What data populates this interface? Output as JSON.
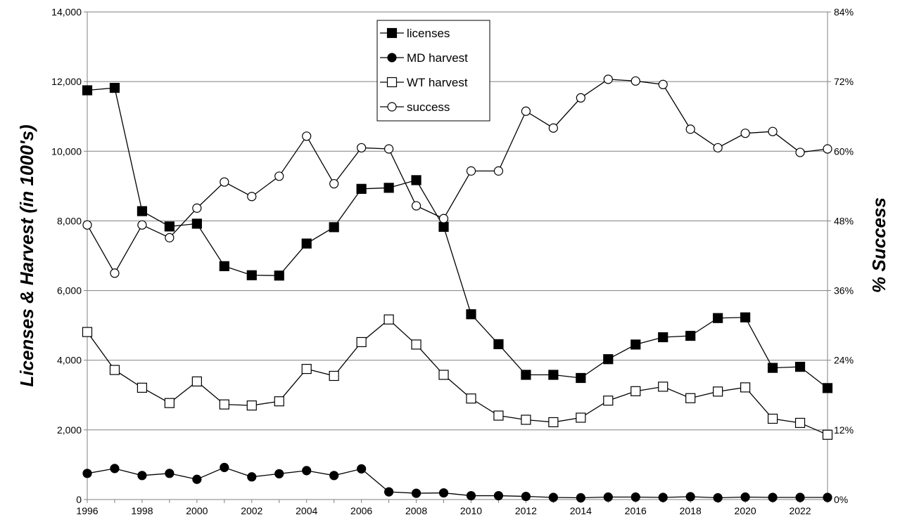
{
  "chart_data": {
    "type": "line",
    "title": "",
    "ylabel": "Licenses & Harvest (in 1000's)",
    "y2label": "% Success",
    "x": [
      1996,
      1997,
      1998,
      1999,
      2000,
      2001,
      2002,
      2003,
      2004,
      2005,
      2006,
      2007,
      2008,
      2009,
      2010,
      2011,
      2012,
      2013,
      2014,
      2015,
      2016,
      2017,
      2018,
      2019,
      2020,
      2021,
      2022,
      2023
    ],
    "x_tick_labels": [
      "1996",
      "1998",
      "2000",
      "2002",
      "2004",
      "2006",
      "2008",
      "2010",
      "2012",
      "2014",
      "2016",
      "2018",
      "2020",
      "2022"
    ],
    "ylim": [
      0,
      14000
    ],
    "y_tick_labels": [
      "0",
      "2,000",
      "4,000",
      "6,000",
      "8,000",
      "10,000",
      "12,000",
      "14,000"
    ],
    "y2lim": [
      0,
      84
    ],
    "y2_tick_labels": [
      "0%",
      "12%",
      "24%",
      "36%",
      "48%",
      "60%",
      "72%",
      "84%"
    ],
    "grid": true,
    "legend_position": "top-center",
    "series": [
      {
        "name": "licenses",
        "axis": "left",
        "marker": "filled-square",
        "values": [
          11750,
          11820,
          8280,
          7840,
          7920,
          6700,
          6440,
          6430,
          7350,
          7820,
          8920,
          8950,
          9170,
          7830,
          5320,
          4460,
          3580,
          3580,
          3490,
          4030,
          4450,
          4660,
          4700,
          5210,
          5230,
          3780,
          3810,
          3200
        ]
      },
      {
        "name": "MD harvest",
        "axis": "left",
        "marker": "filled-circle",
        "values": [
          750,
          890,
          690,
          750,
          580,
          920,
          650,
          740,
          830,
          690,
          880,
          220,
          180,
          190,
          110,
          110,
          90,
          60,
          50,
          70,
          70,
          60,
          80,
          50,
          70,
          60,
          60,
          60
        ]
      },
      {
        "name": "WT harvest",
        "axis": "left",
        "marker": "open-square",
        "values": [
          4810,
          3720,
          3210,
          2770,
          3390,
          2730,
          2700,
          2820,
          3750,
          3550,
          4520,
          5170,
          4450,
          3580,
          2900,
          2410,
          2290,
          2220,
          2350,
          2840,
          3110,
          3240,
          2910,
          3100,
          3220,
          2320,
          2200,
          1860
        ]
      },
      {
        "name": "success",
        "axis": "right",
        "marker": "open-circle",
        "values": [
          47.3,
          39.0,
          47.3,
          45.1,
          50.2,
          54.7,
          52.2,
          55.7,
          62.6,
          54.4,
          60.6,
          60.4,
          50.6,
          48.4,
          56.6,
          56.6,
          66.9,
          64.0,
          69.2,
          72.4,
          72.1,
          71.5,
          63.8,
          60.6,
          63.1,
          63.4,
          59.8,
          60.4
        ]
      }
    ]
  },
  "colors": {
    "line": "#000000",
    "grid": "#808080",
    "background": "#ffffff"
  }
}
